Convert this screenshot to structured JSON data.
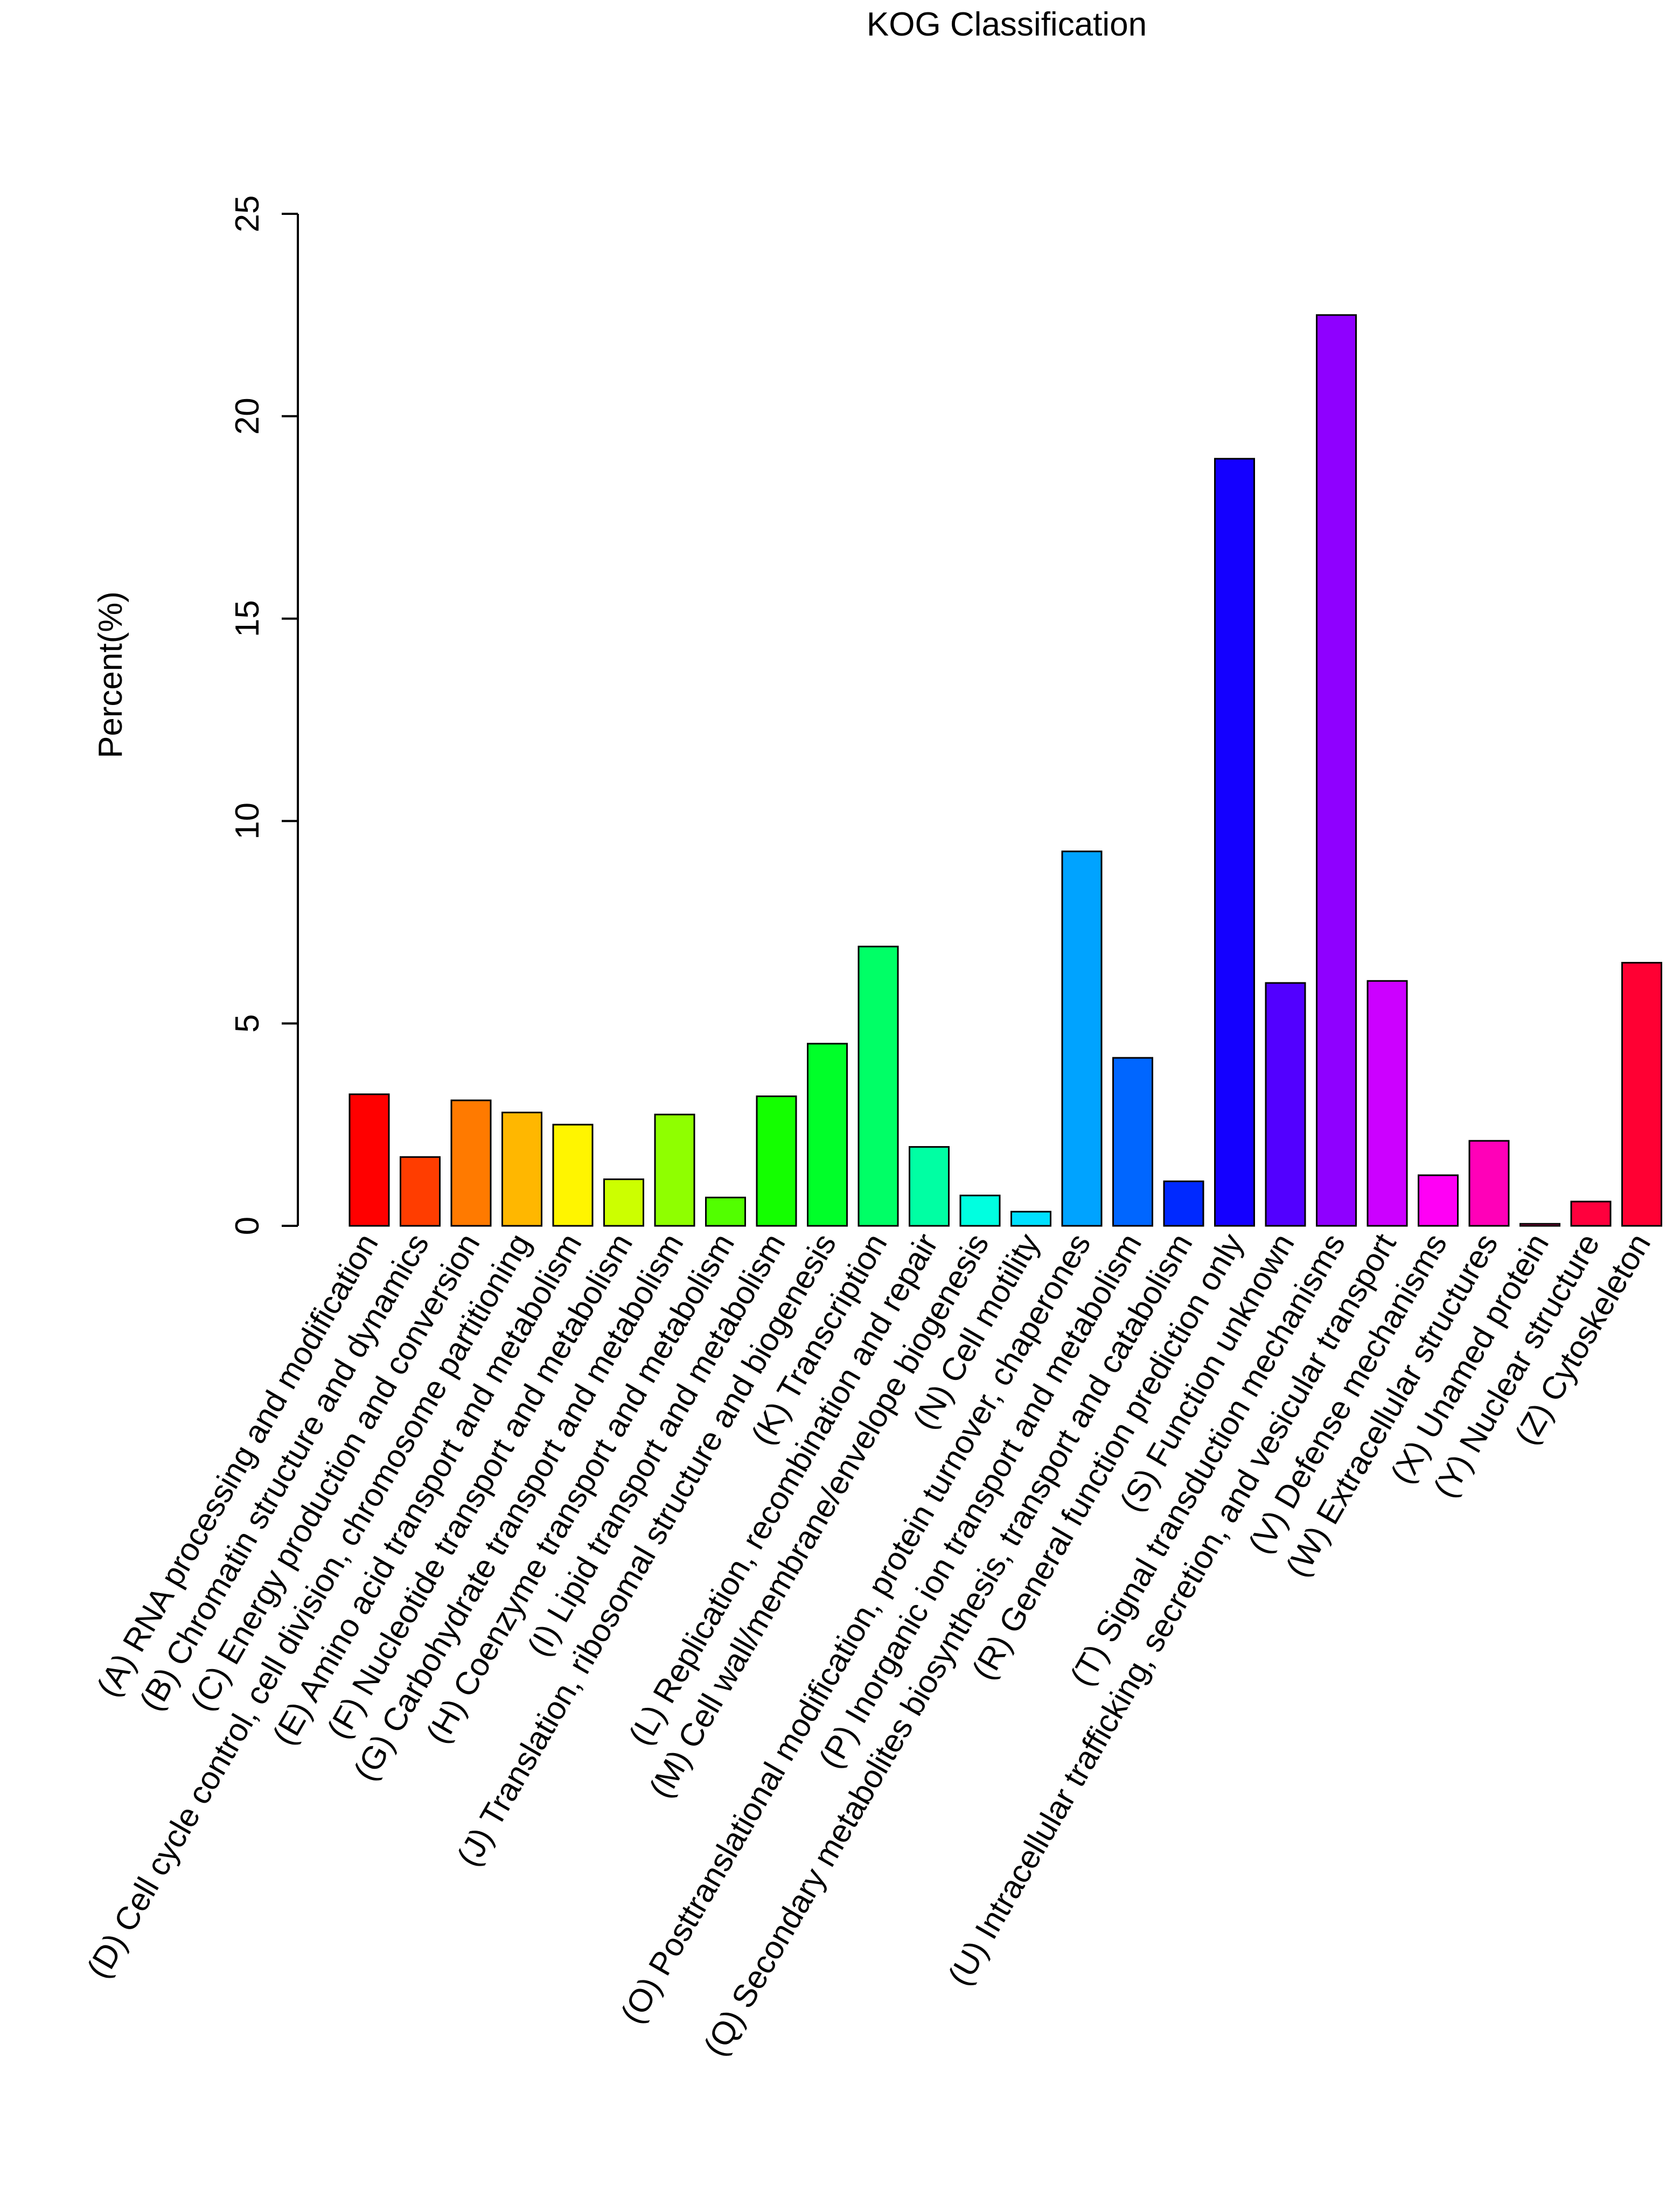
{
  "chart_data": {
    "type": "bar",
    "title": "KOG Classification",
    "xlabel": "",
    "ylabel": "Percent(%)",
    "ylim": [
      0,
      25
    ],
    "yticks": [
      "0",
      "5",
      "10",
      "15",
      "20",
      "25"
    ],
    "grid": false,
    "legend": "none",
    "categories": [
      "(A) RNA processing and modification",
      "(B) Chromatin structure and dynamics",
      "(C) Energy production and conversion",
      "(D) Cell cycle control, cell division, chromosome partitioning",
      "(E) Amino acid transport and metabolism",
      "(F) Nucleotide transport and metabolism",
      "(G) Carbohydrate transport and metabolism",
      "(H) Coenzyme transport and metabolism",
      "(I) Lipid transport and metabolism",
      "(J) Translation, ribosomal structure and biogenesis",
      "(K) Transcription",
      "(L) Replication, recombination and repair",
      "(M) Cell wall/membrane/envelope biogenesis",
      "(N) Cell motility",
      "(O) Posttranslational modification, protein turnover, chaperones",
      "(P) Inorganic ion transport and metabolism",
      "(Q) Secondary metabolites biosynthesis, transport and catabolism",
      "(R) General function prediction only",
      "(S) Function unknown",
      "(T) Signal transduction mechanisms",
      "(U) Intracellular trafficking, secretion, and vesicular transport",
      "(V) Defense mechanisms",
      "(W) Extracellular structures",
      "(X) Unamed protein",
      "(Y) Nuclear structure",
      "(Z) Cytoskeleton"
    ],
    "values": [
      3.25,
      1.7,
      3.1,
      2.8,
      2.5,
      1.15,
      2.75,
      0.7,
      3.2,
      4.5,
      6.9,
      1.95,
      0.75,
      0.35,
      9.25,
      4.15,
      1.1,
      18.95,
      6.0,
      22.5,
      6.05,
      1.25,
      2.1,
      0.05,
      0.6,
      6.5
    ],
    "colors": [
      "#ff0000",
      "#ff3d00",
      "#ff7a00",
      "#ffb700",
      "#fff500",
      "#ccff00",
      "#8fff00",
      "#52ff00",
      "#14ff00",
      "#00ff29",
      "#00ff66",
      "#00ffa3",
      "#00ffe0",
      "#00e0ff",
      "#00a3ff",
      "#0066ff",
      "#0029ff",
      "#1400ff",
      "#5200ff",
      "#8f00ff",
      "#cc00ff",
      "#ff00f5",
      "#ff00b8",
      "#ff007a",
      "#ff003d",
      "#ff0033"
    ]
  }
}
